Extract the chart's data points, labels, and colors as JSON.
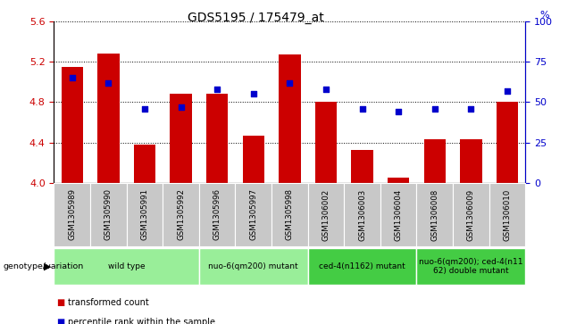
{
  "title": "GDS5195 / 175479_at",
  "samples": [
    "GSM1305989",
    "GSM1305990",
    "GSM1305991",
    "GSM1305992",
    "GSM1305996",
    "GSM1305997",
    "GSM1305998",
    "GSM1306002",
    "GSM1306003",
    "GSM1306004",
    "GSM1306008",
    "GSM1306009",
    "GSM1306010"
  ],
  "bar_values": [
    5.15,
    5.28,
    4.38,
    4.88,
    4.88,
    4.47,
    5.27,
    4.8,
    4.33,
    4.05,
    4.43,
    4.43,
    4.8
  ],
  "dot_values": [
    65,
    62,
    46,
    47,
    58,
    55,
    62,
    58,
    46,
    44,
    46,
    46,
    57
  ],
  "ylim": [
    4.0,
    5.6
  ],
  "y2lim": [
    0,
    100
  ],
  "yticks": [
    4.0,
    4.4,
    4.8,
    5.2,
    5.6
  ],
  "y2ticks": [
    0,
    25,
    50,
    75,
    100
  ],
  "bar_color": "#cc0000",
  "dot_color": "#0000cc",
  "bar_base": 4.0,
  "groups": [
    {
      "label": "wild type",
      "start": 0,
      "end": 3,
      "color": "#99ee99"
    },
    {
      "label": "nuo-6(qm200) mutant",
      "start": 4,
      "end": 6,
      "color": "#99ee99"
    },
    {
      "label": "ced-4(n1162) mutant",
      "start": 7,
      "end": 9,
      "color": "#44cc44"
    },
    {
      "label": "nuo-6(qm200); ced-4(n11\n62) double mutant",
      "start": 10,
      "end": 12,
      "color": "#44cc44"
    }
  ],
  "legend_bar_label": "transformed count",
  "legend_dot_label": "percentile rank within the sample",
  "genotype_label": "genotype/variation",
  "tick_color_left": "#cc0000",
  "tick_color_right": "#0000cc",
  "sample_box_color": "#c8c8c8",
  "bg_color": "#ffffff"
}
